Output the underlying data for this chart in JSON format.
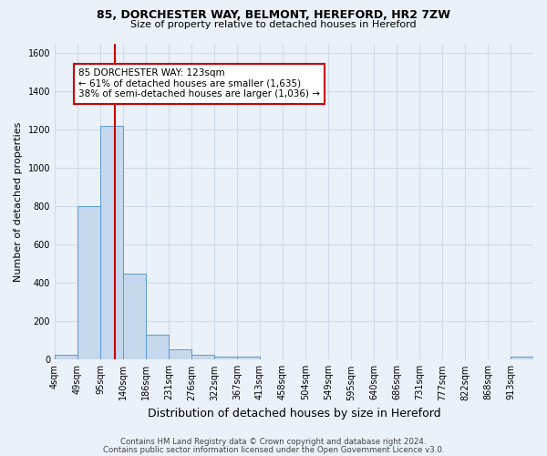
{
  "title1": "85, DORCHESTER WAY, BELMONT, HEREFORD, HR2 7ZW",
  "title2": "Size of property relative to detached houses in Hereford",
  "xlabel": "Distribution of detached houses by size in Hereford",
  "ylabel": "Number of detached properties",
  "bar_values": [
    25,
    800,
    1220,
    450,
    130,
    55,
    25,
    15,
    15,
    0,
    0,
    0,
    0,
    0,
    0,
    0,
    0,
    0,
    0,
    0,
    15
  ],
  "tick_labels": [
    "4sqm",
    "49sqm",
    "95sqm",
    "140sqm",
    "186sqm",
    "231sqm",
    "276sqm",
    "322sqm",
    "367sqm",
    "413sqm",
    "458sqm",
    "504sqm",
    "549sqm",
    "595sqm",
    "640sqm",
    "686sqm",
    "731sqm",
    "777sqm",
    "822sqm",
    "868sqm",
    "913sqm"
  ],
  "bar_color": "#c5d8ed",
  "bar_edge_color": "#5b9bd5",
  "vline_x_bar": 2,
  "vline_color": "#cc0000",
  "annotation_text": "85 DORCHESTER WAY: 123sqm\n← 61% of detached houses are smaller (1,635)\n38% of semi-detached houses are larger (1,036) →",
  "annotation_box_color": "white",
  "annotation_box_edge": "#cc0000",
  "ylim_max": 1650,
  "background_color": "#eaf1f8",
  "grid_color": "#d0dce8",
  "footer1": "Contains HM Land Registry data © Crown copyright and database right 2024.",
  "footer2": "Contains public sector information licensed under the Open Government Licence v3.0."
}
